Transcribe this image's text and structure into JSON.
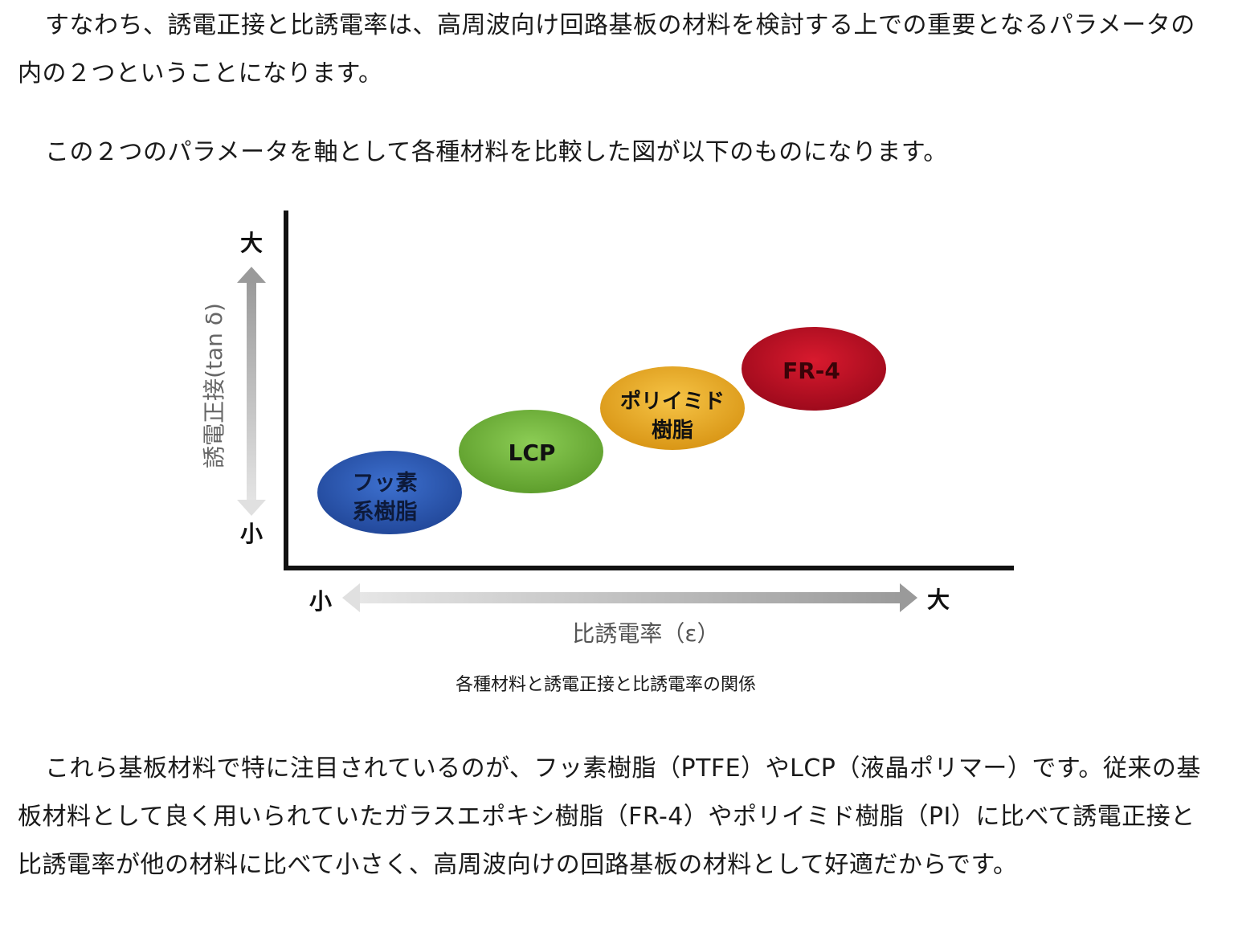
{
  "paragraphs": {
    "p1": "すなわち、誘電正接と比誘電率は、高周波向け回路基板の材料を検討する上での重要となるパラメータの内の２つということになります。",
    "p2": "この２つのパラメータを軸として各種材料を比較した図が以下のものになります。",
    "p3": "これら基板材料で特に注目されているのが、フッ素樹脂（PTFE）やLCP（液晶ポリマー）です。従来の基板材料として良く用いられていたガラスエポキシ樹脂（FR-4）やポリイミド樹脂（PI）に比べて誘電正接と比誘電率が他の材料に比べて小さく、高周波向けの回路基板の材料として好適だからです。"
  },
  "figure": {
    "y_axis_label": "誘電正接(tan δ)",
    "y_high": "大",
    "y_low": "小",
    "x_axis_label": "比誘電率（ε）",
    "x_low": "小",
    "x_high": "大",
    "materials": [
      {
        "id": "fluororesin",
        "line1": "フッ素",
        "line2": "系樹脂",
        "color": "#2f5db8"
      },
      {
        "id": "lcp",
        "line1": "LCP",
        "line2": "",
        "color": "#7cc043"
      },
      {
        "id": "polyimide",
        "line1": "ポリイミド",
        "line2": "樹脂",
        "color": "#f0b432"
      },
      {
        "id": "fr4",
        "line1": "FR-4",
        "line2": "",
        "color": "#c8102e"
      }
    ]
  },
  "caption": "各種材料と誘電正接と比誘電率の関係"
}
